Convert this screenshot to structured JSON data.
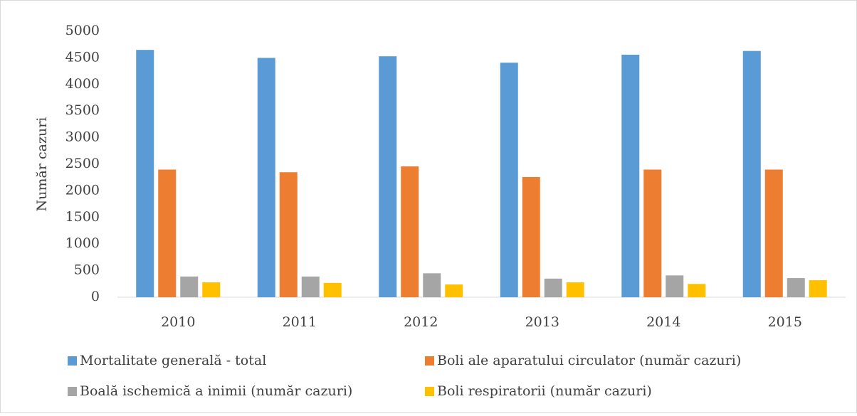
{
  "chart_data": {
    "type": "bar",
    "y_label": "Număr cazuri",
    "categories": [
      "2010",
      "2011",
      "2012",
      "2013",
      "2014",
      "2015"
    ],
    "series": [
      {
        "name": "Mortalitate generală - total",
        "color": "#5b9bd5",
        "values": [
          4650,
          4500,
          4530,
          4410,
          4560,
          4630
        ]
      },
      {
        "name": "Boli ale aparatului circulator (număr cazuri)",
        "color": "#ed7d31",
        "values": [
          2400,
          2350,
          2460,
          2260,
          2400,
          2400
        ]
      },
      {
        "name": "Boală ischemică a inimii (număr cazuri)",
        "color": "#a5a5a5",
        "values": [
          390,
          390,
          450,
          350,
          410,
          360
        ]
      },
      {
        "name": "Boli respiratorii (număr cazuri)",
        "color": "#ffc000",
        "values": [
          280,
          270,
          240,
          280,
          250,
          320
        ]
      }
    ],
    "ylim": [
      0,
      5000
    ],
    "yticks": [
      0,
      500,
      1000,
      1500,
      2000,
      2500,
      3000,
      3500,
      4000,
      4500,
      5000
    ],
    "grid": false,
    "legend": "bottom"
  }
}
